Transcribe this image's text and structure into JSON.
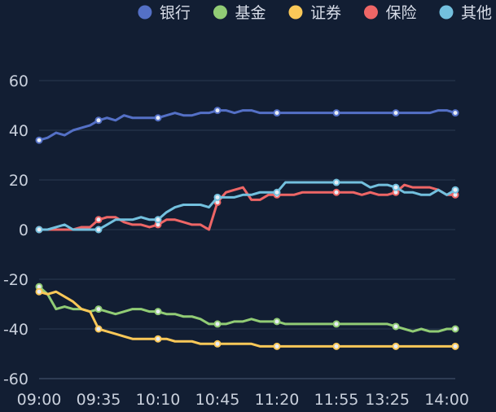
{
  "chart_data": {
    "type": "line",
    "title": "",
    "xlabel": "",
    "ylabel": "",
    "ylim": [
      -60,
      60
    ],
    "yticks": [
      -60,
      -40,
      -20,
      0,
      20,
      40,
      60
    ],
    "grid": true,
    "legend_position": "top-right",
    "x": [
      "09:00",
      "09:05",
      "09:10",
      "09:15",
      "09:20",
      "09:25",
      "09:30",
      "09:35",
      "09:40",
      "09:45",
      "09:50",
      "09:55",
      "10:00",
      "10:05",
      "10:10",
      "10:15",
      "10:20",
      "10:25",
      "10:30",
      "10:35",
      "10:40",
      "10:45",
      "10:50",
      "10:55",
      "11:00",
      "11:05",
      "11:10",
      "11:15",
      "11:20",
      "11:25",
      "11:30",
      "11:35",
      "11:40",
      "11:45",
      "11:50",
      "11:55",
      "13:00",
      "13:05",
      "13:10",
      "13:15",
      "13:20",
      "13:25",
      "13:30",
      "13:35",
      "13:40",
      "13:45",
      "13:50",
      "13:55",
      "14:00",
      "14:05"
    ],
    "xtick_labels": [
      "09:00",
      "09:35",
      "10:10",
      "10:45",
      "11:20",
      "11:55",
      "13:25",
      "14:00"
    ],
    "marker_every": 7,
    "series": [
      {
        "name": "银行",
        "color": "#5470c6",
        "values": [
          36,
          37,
          39,
          38,
          40,
          41,
          42,
          44,
          45,
          44,
          46,
          45,
          45,
          45,
          45,
          46,
          47,
          46,
          46,
          47,
          47,
          48,
          48,
          47,
          48,
          48,
          47,
          47,
          47,
          47,
          47,
          47,
          47,
          47,
          47,
          47,
          47,
          47,
          47,
          47,
          47,
          47,
          47,
          47,
          47,
          47,
          47,
          48,
          48,
          47
        ]
      },
      {
        "name": "基金",
        "color": "#91cc75",
        "values": [
          -23,
          -26,
          -32,
          -31,
          -32,
          -32,
          -33,
          -32,
          -33,
          -34,
          -33,
          -32,
          -32,
          -33,
          -33,
          -34,
          -34,
          -35,
          -35,
          -36,
          -38,
          -38,
          -38,
          -37,
          -37,
          -36,
          -37,
          -37,
          -37,
          -38,
          -38,
          -38,
          -38,
          -38,
          -38,
          -38,
          -38,
          -38,
          -38,
          -38,
          -38,
          -38,
          -39,
          -40,
          -41,
          -40,
          -41,
          -41,
          -40,
          -40
        ]
      },
      {
        "name": "证券",
        "color": "#fac858",
        "values": [
          -25,
          -26,
          -25,
          -27,
          -29,
          -32,
          -33,
          -40,
          -41,
          -42,
          -43,
          -44,
          -44,
          -44,
          -44,
          -44,
          -45,
          -45,
          -45,
          -46,
          -46,
          -46,
          -46,
          -46,
          -46,
          -46,
          -47,
          -47,
          -47,
          -47,
          -47,
          -47,
          -47,
          -47,
          -47,
          -47,
          -47,
          -47,
          -47,
          -47,
          -47,
          -47,
          -47,
          -47,
          -47,
          -47,
          -47,
          -47,
          -47,
          -47
        ]
      },
      {
        "name": "保险",
        "color": "#ee6666",
        "values": [
          0,
          0,
          0,
          0,
          0,
          1,
          1,
          4,
          5,
          5,
          3,
          2,
          2,
          1,
          2,
          4,
          4,
          3,
          2,
          2,
          0,
          11,
          15,
          16,
          17,
          12,
          12,
          14,
          14,
          14,
          14,
          15,
          15,
          15,
          15,
          15,
          15,
          15,
          14,
          15,
          14,
          14,
          15,
          18,
          17,
          17,
          17,
          16,
          14,
          14
        ]
      },
      {
        "name": "其他",
        "color": "#73c0de",
        "values": [
          0,
          0,
          1,
          2,
          0,
          0,
          0,
          0,
          2,
          4,
          4,
          4,
          5,
          4,
          4,
          7,
          9,
          10,
          10,
          10,
          9,
          13,
          13,
          13,
          14,
          14,
          15,
          15,
          15,
          19,
          19,
          19,
          19,
          19,
          19,
          19,
          19,
          19,
          19,
          17,
          18,
          18,
          17,
          15,
          15,
          14,
          14,
          16,
          14,
          16
        ]
      }
    ]
  }
}
